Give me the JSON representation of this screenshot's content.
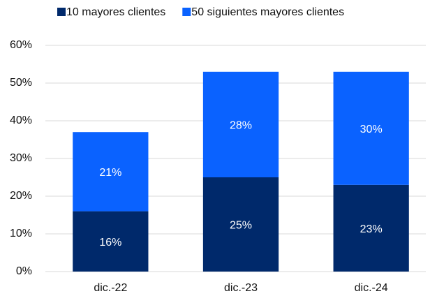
{
  "chart_data": {
    "type": "stacked_bar",
    "categories": [
      "dic.-22",
      "dic.-23",
      "dic.-24"
    ],
    "series": [
      {
        "name": "10 mayores clientes",
        "color": "#00296b",
        "values": [
          16,
          25,
          23
        ],
        "value_labels": [
          "16%",
          "25%",
          "23%"
        ]
      },
      {
        "name": "50 siguientes mayores clientes",
        "color": "#0a62ff",
        "values": [
          21,
          28,
          30
        ],
        "value_labels": [
          "21%",
          "28%",
          "30%"
        ]
      }
    ],
    "ylim": [
      0,
      60
    ],
    "yticks": [
      {
        "value": 0,
        "label": "0%"
      },
      {
        "value": 10,
        "label": "10%"
      },
      {
        "value": 20,
        "label": "20%"
      },
      {
        "value": 30,
        "label": "30%"
      },
      {
        "value": 40,
        "label": "40%"
      },
      {
        "value": 50,
        "label": "50%"
      },
      {
        "value": 60,
        "label": "60%"
      }
    ],
    "grid": true,
    "legend": "top"
  }
}
